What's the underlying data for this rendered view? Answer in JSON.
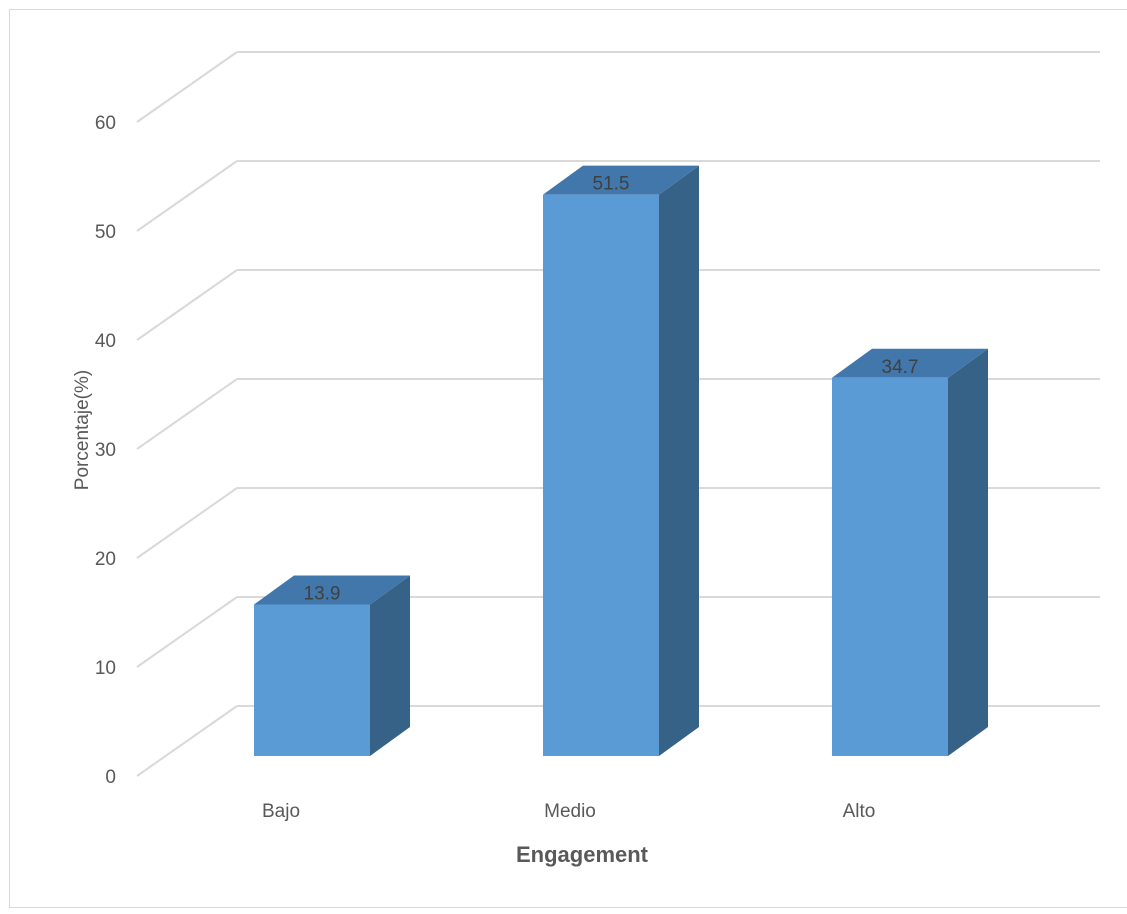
{
  "chart_data": {
    "type": "bar",
    "categories": [
      "Bajo",
      "Medio",
      "Alto"
    ],
    "values": [
      13.9,
      51.5,
      34.7
    ],
    "data_labels": [
      "13.9",
      "51.5",
      "34.7"
    ],
    "title": "",
    "xlabel": "Engagement",
    "ylabel": "Porcentaje(%)",
    "ylim": [
      0,
      60
    ],
    "yticks": [
      0,
      10,
      20,
      30,
      40,
      50,
      60
    ],
    "grid": true,
    "three_d": true,
    "colors": {
      "bar_front": "#5b9bd5",
      "bar_side": "#376287",
      "bar_top": "#4177aa",
      "gridline": "#d9d9d9",
      "tick_text": "#595959",
      "axis_title": "#595959",
      "data_label": "#404040"
    }
  }
}
